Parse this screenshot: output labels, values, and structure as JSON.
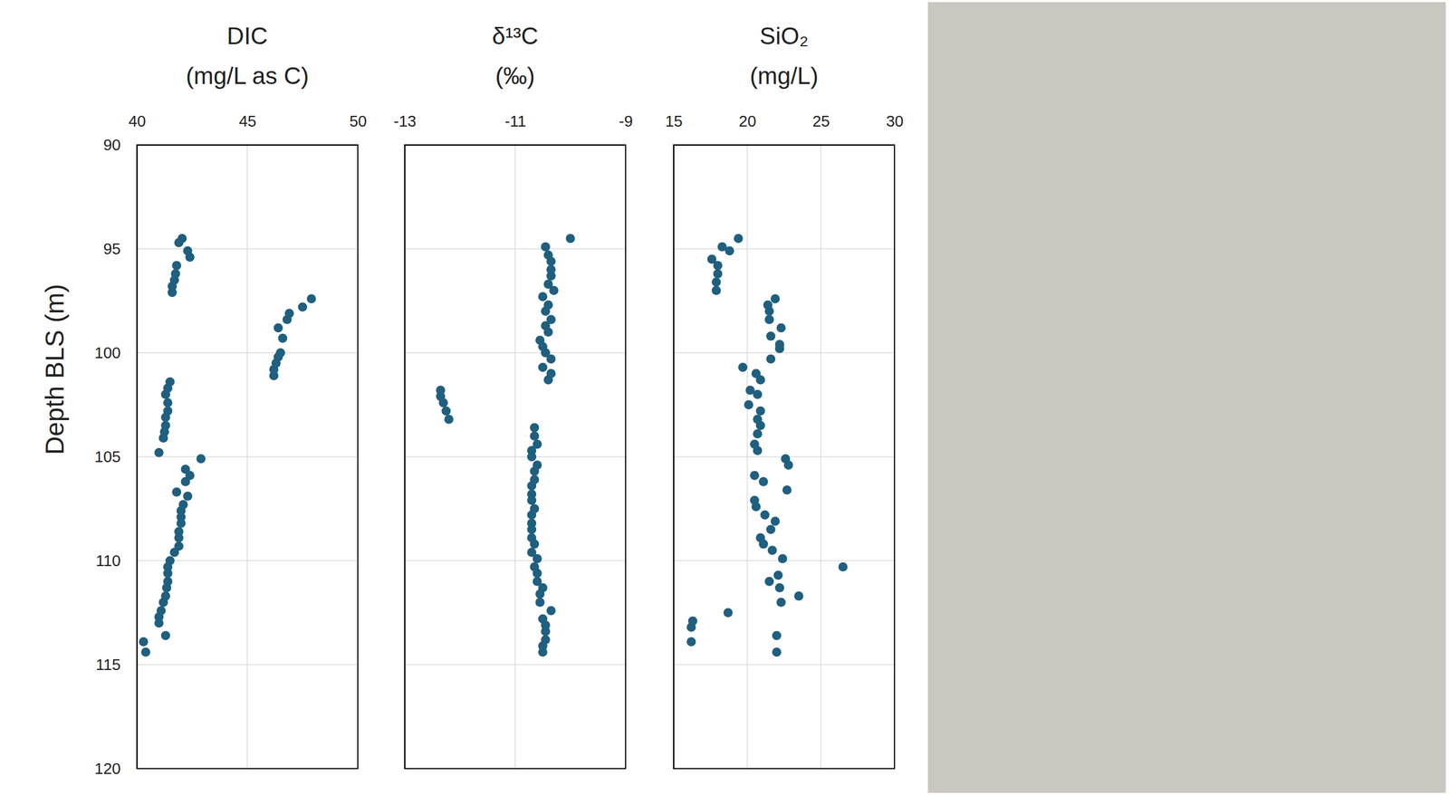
{
  "chart_data": [
    {
      "type": "scatter",
      "title": "DIC",
      "subtitle": "(mg/L as C)",
      "y_label": "Depth BLS (m)",
      "color": "#1f5f7f",
      "marker": "circle",
      "grid": true,
      "xlim": [
        40,
        50
      ],
      "xticks": [
        40,
        45,
        50
      ],
      "ylim": [
        120,
        90
      ],
      "yticks": [
        90,
        95,
        100,
        105,
        110,
        115,
        120
      ],
      "x": [
        42.05,
        41.9,
        42.3,
        42.4,
        41.8,
        41.75,
        41.7,
        41.6,
        41.6,
        47.9,
        47.5,
        46.9,
        46.8,
        46.4,
        46.6,
        46.5,
        46.4,
        46.3,
        46.2,
        46.2,
        41.5,
        41.4,
        41.3,
        41.4,
        41.4,
        41.3,
        41.3,
        41.25,
        41.2,
        41.0,
        42.9,
        42.2,
        42.4,
        42.2,
        41.8,
        42.3,
        42.1,
        42.0,
        42.0,
        42.0,
        41.9,
        41.9,
        41.9,
        41.7,
        41.5,
        41.4,
        41.4,
        41.4,
        41.35,
        41.3,
        41.2,
        41.1,
        41.0,
        41.0,
        41.3,
        40.3,
        40.4
      ],
      "y": [
        94.5,
        94.7,
        95.1,
        95.4,
        95.8,
        96.2,
        96.5,
        96.8,
        97.1,
        97.4,
        97.8,
        98.1,
        98.4,
        98.8,
        99.3,
        100.0,
        100.2,
        100.5,
        100.8,
        101.1,
        101.4,
        101.7,
        102.0,
        102.4,
        102.8,
        103.1,
        103.5,
        103.8,
        104.1,
        104.8,
        105.1,
        105.6,
        105.9,
        106.2,
        106.7,
        106.9,
        107.3,
        107.6,
        107.9,
        108.2,
        108.6,
        108.9,
        109.3,
        109.6,
        110.0,
        110.3,
        110.6,
        111.0,
        111.3,
        111.7,
        112.0,
        112.4,
        112.7,
        113.0,
        113.6,
        113.9,
        114.4
      ]
    },
    {
      "type": "scatter",
      "title": "δ¹³C",
      "subtitle": "(‰)",
      "color": "#1f5f7f",
      "marker": "circle",
      "grid": true,
      "tick_labels": "x",
      "xlim": [
        -13,
        -9
      ],
      "xticks": [
        -13,
        -11,
        -9
      ],
      "ylim": [
        120,
        90
      ],
      "yticks": [
        90,
        95,
        100,
        105,
        110,
        115,
        120
      ],
      "x": [
        -10.0,
        -10.45,
        -10.4,
        -10.35,
        -10.35,
        -10.35,
        -10.4,
        -10.3,
        -10.5,
        -10.4,
        -10.45,
        -10.35,
        -10.45,
        -10.4,
        -10.55,
        -10.5,
        -10.45,
        -10.35,
        -10.5,
        -10.35,
        -10.4,
        -12.35,
        -12.35,
        -12.3,
        -12.25,
        -12.2,
        -10.65,
        -10.65,
        -10.6,
        -10.7,
        -10.7,
        -10.6,
        -10.65,
        -10.65,
        -10.7,
        -10.7,
        -10.7,
        -10.65,
        -10.7,
        -10.7,
        -10.7,
        -10.7,
        -10.65,
        -10.7,
        -10.6,
        -10.65,
        -10.6,
        -10.6,
        -10.5,
        -10.55,
        -10.55,
        -10.35,
        -10.5,
        -10.45,
        -10.45,
        -10.45,
        -10.5,
        -10.5
      ],
      "y": [
        94.5,
        94.9,
        95.3,
        95.6,
        96.0,
        96.3,
        96.7,
        97.0,
        97.3,
        97.7,
        98.0,
        98.4,
        98.7,
        99.0,
        99.4,
        99.7,
        100.0,
        100.3,
        100.7,
        101.0,
        101.3,
        101.8,
        102.1,
        102.4,
        102.8,
        103.2,
        103.6,
        104.0,
        104.4,
        104.7,
        105.0,
        105.4,
        105.7,
        106.1,
        106.4,
        106.8,
        107.1,
        107.5,
        107.8,
        108.2,
        108.5,
        108.9,
        109.2,
        109.6,
        109.9,
        110.3,
        110.6,
        111.0,
        111.3,
        111.6,
        112.0,
        112.4,
        112.8,
        113.1,
        113.4,
        113.8,
        114.1,
        114.4
      ]
    },
    {
      "type": "scatter",
      "title": "SiO₂",
      "subtitle": "(mg/L)",
      "color": "#1f5f7f",
      "marker": "circle",
      "grid": true,
      "tick_labels": "x",
      "xlim": [
        15,
        30
      ],
      "xticks": [
        15,
        20,
        25,
        30
      ],
      "ylim": [
        120,
        90
      ],
      "yticks": [
        90,
        95,
        100,
        105,
        110,
        115,
        120
      ],
      "x": [
        19.4,
        18.3,
        18.8,
        17.6,
        18.0,
        18.0,
        17.9,
        17.9,
        21.9,
        21.4,
        21.5,
        21.5,
        22.3,
        21.6,
        22.2,
        22.2,
        21.6,
        19.7,
        20.6,
        20.9,
        20.2,
        20.7,
        20.1,
        20.9,
        20.7,
        20.9,
        20.7,
        20.5,
        20.7,
        22.6,
        22.8,
        20.5,
        21.1,
        22.7,
        20.5,
        20.6,
        21.2,
        21.9,
        21.6,
        20.9,
        21.1,
        21.7,
        22.4,
        26.5,
        22.1,
        21.5,
        22.2,
        23.5,
        22.3,
        18.7,
        16.3,
        16.2,
        22.0,
        16.2,
        22.0
      ],
      "y": [
        94.5,
        94.9,
        95.1,
        95.5,
        95.8,
        96.2,
        96.6,
        97.0,
        97.4,
        97.7,
        98.0,
        98.4,
        98.8,
        99.2,
        99.6,
        99.8,
        100.3,
        100.7,
        101.0,
        101.3,
        101.8,
        102.0,
        102.5,
        102.8,
        103.2,
        103.5,
        103.9,
        104.4,
        104.7,
        105.1,
        105.4,
        105.9,
        106.2,
        106.6,
        107.1,
        107.4,
        107.8,
        108.1,
        108.5,
        108.9,
        109.2,
        109.5,
        109.9,
        110.3,
        110.7,
        111.0,
        111.3,
        111.7,
        112.0,
        112.5,
        112.9,
        113.2,
        113.6,
        113.9,
        114.4
      ]
    }
  ]
}
